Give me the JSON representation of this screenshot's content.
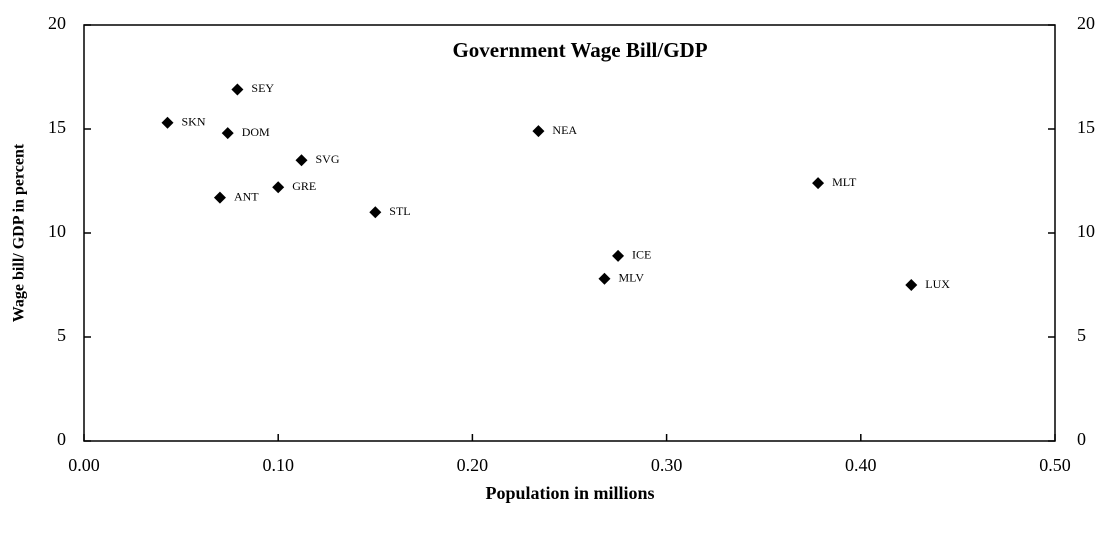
{
  "chart_data": {
    "type": "scatter",
    "title": "Government Wage Bill/GDP",
    "xlabel": "Population in millions",
    "ylabel": "Wage bill/ GDP in percent",
    "x": [
      0.043,
      0.079,
      0.074,
      0.112,
      0.1,
      0.07,
      0.15,
      0.234,
      0.275,
      0.268,
      0.378,
      0.426
    ],
    "values": [
      15.3,
      16.9,
      14.8,
      13.5,
      12.2,
      11.7,
      11.0,
      14.9,
      8.9,
      7.8,
      12.4,
      7.5
    ],
    "labels": [
      "SKN",
      "SEY",
      "DOM",
      "SVG",
      "GRE",
      "ANT",
      "STL",
      "NEA",
      "ICE",
      "MLV",
      "MLT",
      "LUX"
    ],
    "color": "#000000",
    "xlim": [
      0,
      0.5
    ],
    "xticks": [
      {
        "value": 0,
        "label": "0.00"
      },
      {
        "value": 0.1,
        "label": "0.10"
      },
      {
        "value": 0.2,
        "label": "0.20"
      },
      {
        "value": 0.3,
        "label": "0.30"
      },
      {
        "value": 0.4,
        "label": "0.40"
      },
      {
        "value": 0.5,
        "label": "0.50"
      }
    ],
    "ylim": [
      0,
      20
    ],
    "yticks": [
      0,
      5,
      10,
      15,
      20
    ],
    "y2lim": [
      0,
      20
    ],
    "y2ticks": [
      0,
      5,
      10,
      15,
      20
    ]
  }
}
